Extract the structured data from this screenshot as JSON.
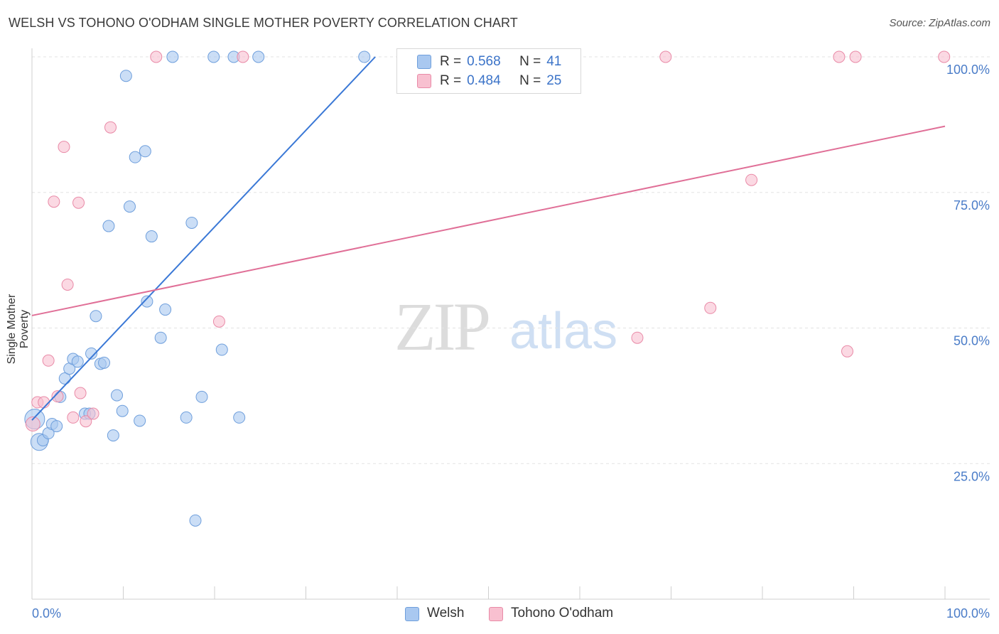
{
  "title": "WELSH VS TOHONO O'ODHAM SINGLE MOTHER POVERTY CORRELATION CHART",
  "source": "Source: ZipAtlas.com",
  "watermark": {
    "zip": "ZIP",
    "atlas": "atlas"
  },
  "legend": {
    "r_label": "R =",
    "n_label": "N =",
    "rows": [
      {
        "r": "0.568",
        "n": "41",
        "color": "#a9c8f0",
        "border": "#6f9fdc"
      },
      {
        "r": "0.484",
        "n": "25",
        "color": "#f8c0d0",
        "border": "#e98aa7"
      }
    ]
  },
  "bottom_legend": [
    "Welsh",
    "Tohono O'odham"
  ],
  "chart_data": {
    "type": "scatter",
    "title": "WELSH VS TOHONO O'ODHAM SINGLE MOTHER POVERTY CORRELATION CHART",
    "xlabel": "",
    "ylabel": "Single Mother Poverty",
    "xlim": [
      0,
      100
    ],
    "ylim": [
      0,
      102.5
    ],
    "x_tick_labels": [
      "0.0%",
      "100.0%"
    ],
    "y_tick_labels": [
      "25.0%",
      "50.0%",
      "75.0%",
      "100.0%"
    ],
    "y_ticks": [
      25,
      50,
      75,
      100
    ],
    "grid": true,
    "legend_position": "top-center",
    "series": [
      {
        "name": "Welsh",
        "color": "#6f9fdc",
        "fill": "#a9c8f0",
        "trend": {
          "x": [
            0,
            37.6
          ],
          "y": [
            33,
            100
          ]
        },
        "points": [
          [
            0.3,
            33.2,
            14
          ],
          [
            0.8,
            29.0,
            12
          ],
          [
            1.2,
            29.3,
            8
          ],
          [
            1.8,
            30.6,
            8
          ],
          [
            2.2,
            32.3,
            8
          ],
          [
            2.7,
            31.9,
            8
          ],
          [
            3.1,
            37.3,
            8
          ],
          [
            3.6,
            40.7,
            8
          ],
          [
            4.1,
            42.5,
            8
          ],
          [
            4.5,
            44.3,
            8
          ],
          [
            5.0,
            43.8,
            8
          ],
          [
            5.8,
            34.2,
            8
          ],
          [
            6.3,
            34.2,
            8
          ],
          [
            6.5,
            45.3,
            8
          ],
          [
            7.0,
            52.2,
            8
          ],
          [
            7.5,
            43.4,
            8
          ],
          [
            7.9,
            43.6,
            8
          ],
          [
            8.4,
            68.8,
            8
          ],
          [
            8.9,
            30.2,
            8
          ],
          [
            9.3,
            37.6,
            8
          ],
          [
            9.9,
            34.7,
            8
          ],
          [
            10.3,
            96.5,
            8
          ],
          [
            10.7,
            72.4,
            8
          ],
          [
            11.3,
            81.5,
            8
          ],
          [
            11.8,
            32.9,
            8
          ],
          [
            12.4,
            82.6,
            8
          ],
          [
            12.6,
            54.9,
            8
          ],
          [
            13.1,
            66.9,
            8
          ],
          [
            14.1,
            48.2,
            8
          ],
          [
            14.6,
            53.4,
            8
          ],
          [
            15.4,
            100,
            8
          ],
          [
            16.9,
            33.5,
            8
          ],
          [
            17.5,
            69.4,
            8
          ],
          [
            17.9,
            14.5,
            8
          ],
          [
            18.6,
            37.3,
            8
          ],
          [
            19.9,
            100,
            8
          ],
          [
            20.8,
            46.0,
            8
          ],
          [
            22.1,
            100,
            8
          ],
          [
            22.7,
            33.5,
            8
          ],
          [
            24.8,
            100,
            8
          ],
          [
            36.4,
            100,
            8
          ]
        ]
      },
      {
        "name": "Tohono O'odham",
        "color": "#e98aa7",
        "fill": "#f8c0d0",
        "trend": {
          "x": [
            0,
            100
          ],
          "y": [
            52.3,
            87.2
          ]
        },
        "points": [
          [
            0.1,
            32.3,
            10
          ],
          [
            0.6,
            36.3,
            8
          ],
          [
            1.3,
            36.3,
            8
          ],
          [
            1.8,
            44.0,
            8
          ],
          [
            2.4,
            73.3,
            8
          ],
          [
            2.8,
            37.4,
            8
          ],
          [
            3.5,
            83.4,
            8
          ],
          [
            3.9,
            58.0,
            8
          ],
          [
            4.5,
            33.5,
            8
          ],
          [
            5.1,
            73.1,
            8
          ],
          [
            5.3,
            38.0,
            8
          ],
          [
            5.9,
            32.8,
            8
          ],
          [
            6.7,
            34.2,
            8
          ],
          [
            8.6,
            87.0,
            8
          ],
          [
            13.6,
            100,
            8
          ],
          [
            20.5,
            51.2,
            8
          ],
          [
            23.1,
            100,
            8
          ],
          [
            66.3,
            48.2,
            8
          ],
          [
            69.4,
            100,
            8
          ],
          [
            74.3,
            53.7,
            8
          ],
          [
            78.8,
            77.3,
            8
          ],
          [
            88.4,
            100,
            8
          ],
          [
            89.3,
            45.7,
            8
          ],
          [
            90.2,
            100,
            8
          ],
          [
            99.9,
            100,
            8
          ]
        ]
      }
    ]
  }
}
